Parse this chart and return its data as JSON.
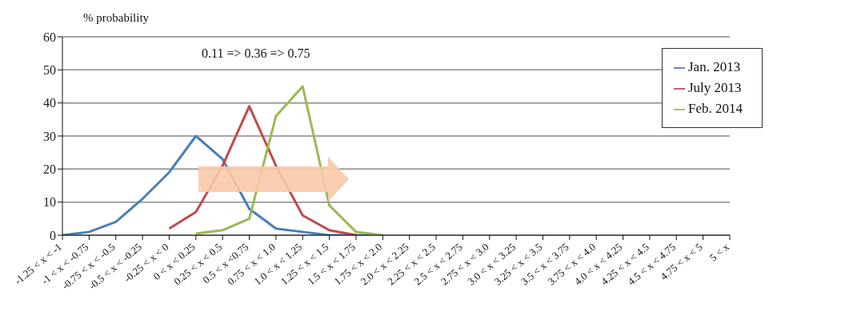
{
  "chart_data": {
    "type": "line",
    "ylabel": "% probability",
    "annotations": [
      "0.11 => 0.36 => 0.75"
    ],
    "categories": [
      "-1.25 < x < -1",
      "-1 < x < -0.75",
      "-0.75 < x < -0.5",
      "-0.5 < x < -0.25",
      "-0.25 < x < 0",
      "0 < x < 0.25",
      "0.25 < x < 0.5",
      "0.5 < x  <0.75",
      "0.75 < x < 1.0",
      "1.0 < x < 1.25",
      "1.25 < x < 1.5",
      "1.5 < x < 1.75",
      "1.75 < x < 2.0",
      "2.0 < x < 2.25",
      "2.25 < x < 2.5",
      "2.5 < x < 2.75",
      "2.75 < x < 3.0",
      "3.0 < x < 3.25",
      "3.25 < x < 3.5",
      "3.5 < x < 3.75",
      "3.75 < x < 4.0",
      "4.0 < x < 4.25",
      "4.25 < x < 4.5",
      "4.5 < x < 4.75",
      "4.75 < x < 5",
      "5 < x"
    ],
    "series": [
      {
        "name": "Jan. 2013",
        "color": "#4a7ebb",
        "values": [
          0,
          1,
          4,
          11,
          19,
          30,
          23,
          8,
          2,
          1,
          0,
          0,
          0,
          null,
          null,
          null,
          null,
          null,
          null,
          null,
          null,
          null,
          null,
          null,
          null,
          null
        ]
      },
      {
        "name": "July 2013",
        "color": "#be4b48",
        "values": [
          null,
          null,
          null,
          null,
          2,
          7,
          21,
          39,
          21,
          6,
          1.5,
          0,
          null,
          null,
          null,
          null,
          null,
          null,
          null,
          null,
          null,
          null,
          null,
          null,
          null,
          null
        ]
      },
      {
        "name": "Feb. 2014",
        "color": "#98b954",
        "values": [
          null,
          null,
          null,
          null,
          null,
          0.5,
          1.5,
          5,
          36,
          45,
          9,
          1,
          0,
          null,
          null,
          null,
          null,
          null,
          null,
          null,
          null,
          null,
          null,
          null,
          null,
          null
        ]
      }
    ],
    "ylim": [
      0,
      60
    ],
    "yticks": [
      0,
      10,
      20,
      30,
      40,
      50,
      60
    ],
    "grid": "y",
    "legend": "top right",
    "marker": "none",
    "line_style": "solid"
  }
}
